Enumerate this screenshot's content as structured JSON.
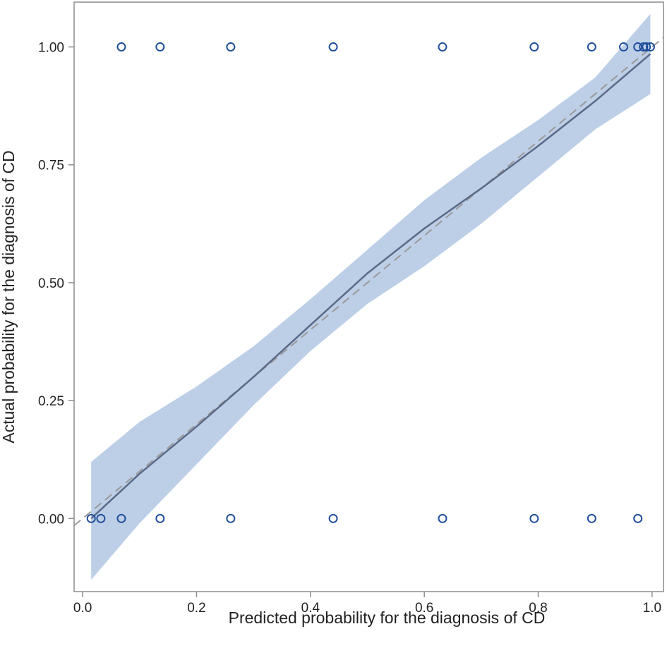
{
  "chart_data": {
    "type": "scatter",
    "title": "",
    "xlabel": "Predicted probability for the diagnosis of CD",
    "ylabel": "Actual probability for the diagnosis of CD",
    "xlim": [
      -0.015,
      1.02
    ],
    "ylim": [
      -0.155,
      1.095
    ],
    "x_ticks": [
      0.0,
      0.2,
      0.4,
      0.6,
      0.8,
      1.0
    ],
    "x_tick_labels": [
      "0.0",
      "0.2",
      "0.4",
      "0.6",
      "0.8",
      "1.0"
    ],
    "y_ticks": [
      0.0,
      0.25,
      0.5,
      0.75,
      1.0
    ],
    "y_tick_labels": [
      "0.00",
      "0.25",
      "0.50",
      "0.75",
      "1.00"
    ],
    "grid": false,
    "colors": {
      "points": "#1f4e9c",
      "band": "#b8cce6",
      "fit_line": "#5a6a88",
      "reference_line": "#9a9a9a",
      "frame": "#8c8c8c"
    },
    "points": [
      {
        "x": 0.068,
        "y": 1
      },
      {
        "x": 0.136,
        "y": 1
      },
      {
        "x": 0.26,
        "y": 1
      },
      {
        "x": 0.44,
        "y": 1
      },
      {
        "x": 0.632,
        "y": 1
      },
      {
        "x": 0.793,
        "y": 1
      },
      {
        "x": 0.894,
        "y": 1
      },
      {
        "x": 0.95,
        "y": 1
      },
      {
        "x": 0.975,
        "y": 1
      },
      {
        "x": 0.985,
        "y": 1
      },
      {
        "x": 0.99,
        "y": 1
      },
      {
        "x": 0.997,
        "y": 1
      },
      {
        "x": 0.015,
        "y": 0
      },
      {
        "x": 0.032,
        "y": 0
      },
      {
        "x": 0.068,
        "y": 0
      },
      {
        "x": 0.136,
        "y": 0
      },
      {
        "x": 0.26,
        "y": 0
      },
      {
        "x": 0.44,
        "y": 0
      },
      {
        "x": 0.632,
        "y": 0
      },
      {
        "x": 0.793,
        "y": 0
      },
      {
        "x": 0.894,
        "y": 0
      },
      {
        "x": 0.975,
        "y": 0
      }
    ],
    "fit_line": {
      "x": [
        0.015,
        0.1,
        0.2,
        0.3,
        0.4,
        0.5,
        0.6,
        0.7,
        0.8,
        0.9,
        0.997
      ],
      "y": [
        0.0,
        0.095,
        0.195,
        0.3,
        0.41,
        0.52,
        0.615,
        0.7,
        0.79,
        0.885,
        0.985
      ]
    },
    "confidence_band": {
      "x": [
        0.015,
        0.1,
        0.2,
        0.3,
        0.4,
        0.5,
        0.6,
        0.7,
        0.8,
        0.9,
        0.997
      ],
      "lower": [
        -0.13,
        -0.01,
        0.115,
        0.24,
        0.355,
        0.455,
        0.535,
        0.625,
        0.725,
        0.825,
        0.9
      ],
      "upper": [
        0.12,
        0.205,
        0.28,
        0.365,
        0.465,
        0.57,
        0.675,
        0.765,
        0.845,
        0.935,
        1.07
      ]
    },
    "reference_line": {
      "x": [
        -0.015,
        1.02
      ],
      "y": [
        -0.015,
        1.02
      ]
    }
  }
}
